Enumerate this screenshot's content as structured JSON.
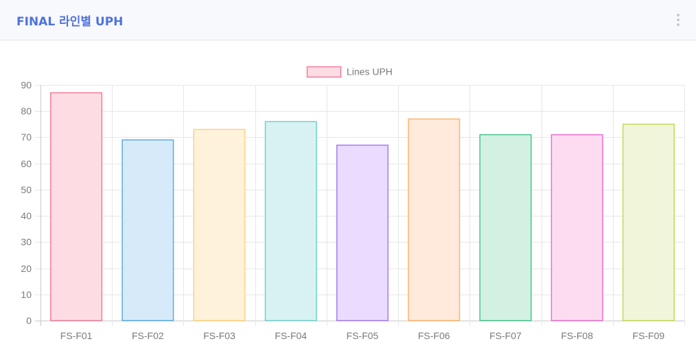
{
  "header": {
    "title": "FINAL 라인별 UPH",
    "menu_icon": "kebab-vertical-icon"
  },
  "chart_data": {
    "type": "bar",
    "categories": [
      "FS-F01",
      "FS-F02",
      "FS-F03",
      "FS-F04",
      "FS-F05",
      "FS-F06",
      "FS-F07",
      "FS-F08",
      "FS-F09"
    ],
    "series": [
      {
        "name": "Lines UPH",
        "values": [
          87,
          69,
          73,
          76,
          67,
          77,
          71,
          71,
          75
        ]
      }
    ],
    "ylim": [
      0,
      90
    ],
    "yticks": [
      0,
      10,
      20,
      30,
      40,
      50,
      60,
      70,
      80,
      90
    ],
    "grid": true,
    "legend_position": "top",
    "legend_color": {
      "fill": "#fddde3",
      "stroke": "#f17b95"
    },
    "colors": [
      {
        "fill": "#fddde3",
        "stroke": "#f17b95"
      },
      {
        "fill": "#d6eaf9",
        "stroke": "#5aaae6"
      },
      {
        "fill": "#fff2da",
        "stroke": "#fdd37c"
      },
      {
        "fill": "#d8f2f2",
        "stroke": "#73cfcf"
      },
      {
        "fill": "#e9dcfe",
        "stroke": "#a47cf2"
      },
      {
        "fill": "#ffeadb",
        "stroke": "#fcb56c"
      },
      {
        "fill": "#d3f1e3",
        "stroke": "#45c38b"
      },
      {
        "fill": "#fddcf2",
        "stroke": "#ec6dcc"
      },
      {
        "fill": "#f1f6da",
        "stroke": "#c1d957"
      }
    ]
  }
}
